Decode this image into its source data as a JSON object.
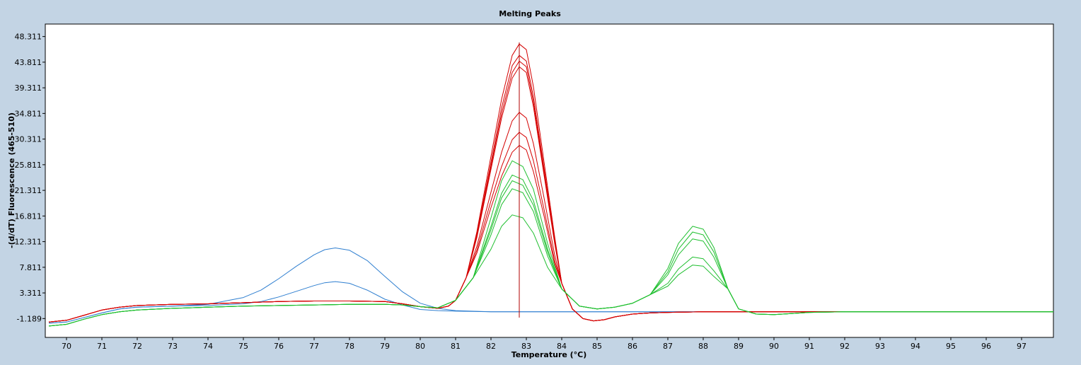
{
  "window": {
    "background": "#c3d4e4"
  },
  "chart_data": {
    "type": "line",
    "title": "Melting Peaks",
    "xlabel": "Temperature (°C)",
    "ylabel": "-(d/dT) Fluorescence (465-510)",
    "xlim": [
      69.4,
      97.9
    ],
    "ylim": [
      -4.5,
      50.5
    ],
    "xticks": [
      70,
      71,
      72,
      73,
      74,
      75,
      76,
      77,
      78,
      79,
      80,
      81,
      82,
      83,
      84,
      85,
      86,
      87,
      88,
      89,
      90,
      91,
      92,
      93,
      94,
      95,
      96,
      97
    ],
    "yticks": [
      -1.189,
      3.311,
      7.811,
      12.311,
      16.811,
      21.311,
      25.811,
      30.311,
      34.811,
      39.311,
      43.811,
      48.311
    ],
    "ytick_labels": [
      "-1.189",
      "3.311",
      "7.811",
      "12.311",
      "16.811",
      "21.311",
      "25.811",
      "30.311",
      "34.811",
      "39.311",
      "43.811",
      "48.311"
    ],
    "cursor": {
      "x": 82.8,
      "color": "#b00000"
    },
    "grid": false,
    "colors": {
      "blue": "#2f7fd0",
      "red": "#d40000",
      "green": "#1fbf2f"
    },
    "series": [
      {
        "color": "#2f7fd0",
        "x": [
          69.5,
          70,
          70.5,
          71,
          71.5,
          72,
          73,
          74,
          75,
          75.5,
          76,
          76.5,
          77,
          77.3,
          77.6,
          78,
          78.5,
          79,
          79.5,
          80,
          80.5,
          81,
          82,
          83,
          85,
          88,
          91.5
        ],
        "y": [
          -2,
          -1.8,
          -1,
          -0.2,
          0.5,
          0.8,
          1,
          1.3,
          2.5,
          3.8,
          5.8,
          8,
          10,
          10.9,
          11.2,
          10.8,
          9,
          6.2,
          3.5,
          1.5,
          0.6,
          0.2,
          0,
          0,
          0,
          0,
          0
        ]
      },
      {
        "color": "#2f7fd0",
        "x": [
          69.5,
          70,
          70.5,
          71,
          71.5,
          72,
          73,
          74,
          75,
          75.5,
          76,
          76.5,
          77,
          77.3,
          77.6,
          78,
          78.5,
          79,
          79.5,
          80,
          80.5,
          81,
          82,
          83,
          85,
          88,
          91.5
        ],
        "y": [
          -2,
          -1.8,
          -1,
          -0.2,
          0.5,
          0.8,
          1,
          1.1,
          1.4,
          1.8,
          2.6,
          3.6,
          4.6,
          5.1,
          5.3,
          5,
          3.8,
          2.2,
          1.2,
          0.4,
          0.2,
          0.1,
          0,
          0,
          0,
          0,
          0
        ]
      },
      {
        "color": "#d40000",
        "x": [
          69.5,
          70,
          70.5,
          71,
          71.5,
          72,
          73,
          74,
          75,
          76,
          77,
          78,
          79,
          79.5,
          80,
          80.5,
          80.8,
          81,
          81.3,
          81.6,
          82,
          82.3,
          82.6,
          82.8,
          83,
          83.2,
          83.5,
          83.8,
          84,
          84.3,
          84.6,
          84.9,
          85.2,
          85.5,
          86,
          86.5,
          87,
          88,
          89,
          90,
          91,
          93,
          95,
          97.9
        ],
        "y": [
          -1.8,
          -1.5,
          -0.6,
          0.3,
          0.8,
          1.1,
          1.3,
          1.4,
          1.6,
          1.8,
          1.9,
          1.9,
          1.8,
          1.4,
          0.9,
          0.6,
          1,
          2,
          6,
          13,
          25,
          34,
          41,
          43,
          42,
          36,
          24,
          12,
          5,
          0.5,
          -1.2,
          -1.6,
          -1.4,
          -0.9,
          -0.4,
          -0.2,
          -0.1,
          0,
          0,
          0,
          0,
          0,
          0,
          0
        ]
      },
      {
        "color": "#d40000",
        "x": [
          69.5,
          70,
          70.5,
          71,
          71.5,
          72,
          73,
          74,
          75,
          76,
          77,
          78,
          79,
          79.5,
          80,
          80.5,
          80.8,
          81,
          81.3,
          81.6,
          82,
          82.3,
          82.6,
          82.8,
          83,
          83.2,
          83.5,
          83.8,
          84,
          84.3,
          84.6,
          84.9,
          85.2,
          85.5,
          86,
          86.5,
          87,
          88,
          89,
          90,
          91,
          93,
          95,
          97.9
        ],
        "y": [
          -1.8,
          -1.5,
          -0.6,
          0.3,
          0.8,
          1.1,
          1.3,
          1.4,
          1.6,
          1.8,
          1.9,
          1.9,
          1.8,
          1.4,
          0.9,
          0.6,
          1,
          2,
          6,
          13.3,
          25.6,
          34.8,
          42,
          44,
          43,
          36.8,
          24.6,
          12.3,
          5,
          0.5,
          -1.2,
          -1.6,
          -1.4,
          -0.9,
          -0.4,
          -0.2,
          -0.1,
          0,
          0,
          0,
          0,
          0,
          0,
          0
        ]
      },
      {
        "color": "#d40000",
        "x": [
          69.5,
          70,
          70.5,
          71,
          71.5,
          72,
          73,
          74,
          75,
          76,
          77,
          78,
          79,
          79.5,
          80,
          80.5,
          80.8,
          81,
          81.3,
          81.6,
          82,
          82.3,
          82.6,
          82.8,
          83,
          83.2,
          83.5,
          83.8,
          84,
          84.3,
          84.6,
          84.9,
          85.2,
          85.5,
          86,
          86.5,
          87,
          88,
          89,
          90,
          91,
          93,
          95,
          97.9
        ],
        "y": [
          -1.8,
          -1.5,
          -0.6,
          0.3,
          0.8,
          1.1,
          1.3,
          1.4,
          1.6,
          1.8,
          1.9,
          1.9,
          1.8,
          1.4,
          0.9,
          0.6,
          1,
          2,
          6,
          14,
          27.3,
          37.3,
          45,
          47,
          46,
          39.5,
          26.3,
          13.2,
          5,
          0.5,
          -1.2,
          -1.6,
          -1.4,
          -0.9,
          -0.4,
          -0.2,
          -0.1,
          0,
          0,
          0,
          0,
          0,
          0,
          0
        ]
      },
      {
        "color": "#d40000",
        "x": [
          69.5,
          70,
          70.5,
          71,
          71.5,
          72,
          73,
          74,
          75,
          76,
          77,
          78,
          79,
          79.5,
          80,
          80.5,
          80.8,
          81,
          81.3,
          81.6,
          82,
          82.3,
          82.6,
          82.8,
          83,
          83.2,
          83.5,
          83.8,
          84,
          84.3,
          84.6,
          84.9,
          85.2,
          85.5,
          86,
          86.5,
          87,
          88,
          89,
          90,
          91,
          93,
          95,
          97.9
        ],
        "y": [
          -1.8,
          -1.5,
          -0.6,
          0.3,
          0.8,
          1.1,
          1.3,
          1.4,
          1.6,
          1.8,
          1.9,
          1.9,
          1.8,
          1.4,
          0.9,
          0.6,
          1,
          2,
          6,
          13.6,
          26.2,
          35.8,
          43.2,
          45,
          44,
          37.7,
          25.2,
          12.6,
          5,
          0.5,
          -1.2,
          -1.6,
          -1.4,
          -0.9,
          -0.4,
          -0.2,
          -0.1,
          0,
          0,
          0,
          0,
          0,
          0,
          0
        ]
      },
      {
        "color": "#d40000",
        "x": [
          69.5,
          70,
          70.5,
          71,
          71.5,
          72,
          73,
          74,
          75,
          76,
          77,
          78,
          79,
          79.5,
          80,
          80.5,
          80.8,
          81,
          81.3,
          81.6,
          82,
          82.3,
          82.6,
          82.8,
          83,
          83.2,
          83.5,
          83.8,
          84,
          84.3,
          84.6,
          84.9,
          85.2,
          85.5,
          86,
          86.5,
          87,
          88,
          89,
          90,
          91,
          93,
          95,
          97.9
        ],
        "y": [
          -1.8,
          -1.5,
          -0.6,
          0.3,
          0.8,
          1.1,
          1.3,
          1.4,
          1.6,
          1.8,
          1.9,
          1.9,
          1.8,
          1.4,
          0.9,
          0.6,
          1,
          2,
          6,
          11.5,
          21,
          28,
          33.5,
          35,
          34,
          29.5,
          20,
          10,
          5,
          0.5,
          -1.2,
          -1.6,
          -1.4,
          -0.9,
          -0.4,
          -0.2,
          -0.1,
          0,
          0,
          0,
          0,
          0,
          0,
          0
        ]
      },
      {
        "color": "#d40000",
        "x": [
          69.5,
          70,
          70.5,
          71,
          71.5,
          72,
          73,
          74,
          75,
          76,
          77,
          78,
          79,
          79.5,
          80,
          80.5,
          80.8,
          81,
          81.3,
          81.6,
          82,
          82.3,
          82.6,
          82.8,
          83,
          83.2,
          83.5,
          83.8,
          84,
          84.3,
          84.6,
          84.9,
          85.2,
          85.5,
          86,
          86.5,
          87,
          88,
          89,
          90,
          91,
          93,
          95,
          97.9
        ],
        "y": [
          -1.8,
          -1.5,
          -0.6,
          0.3,
          0.8,
          1.1,
          1.3,
          1.4,
          1.6,
          1.8,
          1.9,
          1.9,
          1.8,
          1.4,
          0.9,
          0.6,
          1,
          2,
          6,
          10.8,
          19.5,
          25.5,
          30.2,
          31.5,
          30.6,
          26.5,
          18,
          9,
          5,
          0.5,
          -1.2,
          -1.6,
          -1.4,
          -0.9,
          -0.4,
          -0.2,
          -0.1,
          0,
          0,
          0,
          0,
          0,
          0,
          0
        ]
      },
      {
        "color": "#d40000",
        "x": [
          69.5,
          70,
          70.5,
          71,
          71.5,
          72,
          73,
          74,
          75,
          76,
          77,
          78,
          79,
          79.5,
          80,
          80.5,
          80.8,
          81,
          81.3,
          81.6,
          82,
          82.3,
          82.6,
          82.8,
          83,
          83.2,
          83.5,
          83.8,
          84,
          84.3,
          84.6,
          84.9,
          85.2,
          85.5,
          86,
          86.5,
          87,
          88,
          89,
          90,
          91,
          93,
          95,
          97.9
        ],
        "y": [
          -1.8,
          -1.5,
          -0.6,
          0.3,
          0.8,
          1.1,
          1.3,
          1.4,
          1.6,
          1.8,
          1.9,
          1.9,
          1.8,
          1.4,
          0.9,
          0.6,
          1,
          2,
          6,
          10.3,
          18.3,
          23.8,
          28,
          29.2,
          28.4,
          24.6,
          16.8,
          8.4,
          5,
          0.5,
          -1.2,
          -1.6,
          -1.4,
          -0.9,
          -0.4,
          -0.2,
          -0.1,
          0,
          0,
          0,
          0,
          0,
          0,
          0
        ]
      },
      {
        "color": "#1fbf2f",
        "x": [
          69.5,
          70,
          70.5,
          71,
          71.5,
          72,
          73,
          74,
          75,
          76,
          77,
          78,
          79,
          79.5,
          80,
          80.5,
          81,
          81.5,
          82,
          82.3,
          82.6,
          82.9,
          83.2,
          83.6,
          84,
          84.5,
          85,
          85.5,
          86,
          86.5,
          87,
          87.3,
          87.7,
          88,
          88.3,
          88.7,
          89,
          89.5,
          90,
          90.5,
          91,
          92,
          95,
          97.9
        ],
        "y": [
          -2.5,
          -2.2,
          -1.3,
          -0.5,
          0,
          0.3,
          0.6,
          0.8,
          1,
          1.1,
          1.2,
          1.3,
          1.3,
          1.2,
          0.9,
          0.7,
          2,
          6,
          16.5,
          23,
          26.5,
          25.5,
          21.5,
          12,
          4,
          1,
          0.5,
          0.8,
          1.5,
          3,
          7,
          11,
          14,
          13.5,
          10.5,
          4,
          0.5,
          -0.4,
          -0.5,
          -0.3,
          -0.1,
          0,
          0,
          0
        ]
      },
      {
        "color": "#1fbf2f",
        "x": [
          69.5,
          70,
          70.5,
          71,
          71.5,
          72,
          73,
          74,
          75,
          76,
          77,
          78,
          79,
          79.5,
          80,
          80.5,
          81,
          81.5,
          82,
          82.3,
          82.6,
          82.9,
          83.2,
          83.6,
          84,
          84.5,
          85,
          85.5,
          86,
          86.5,
          87,
          87.3,
          87.7,
          88,
          88.3,
          88.7,
          89,
          89.5,
          90,
          90.5,
          91,
          92,
          95,
          97.9
        ],
        "y": [
          -2.5,
          -2.2,
          -1.3,
          -0.5,
          0,
          0.3,
          0.6,
          0.8,
          1,
          1.1,
          1.2,
          1.3,
          1.3,
          1.2,
          0.9,
          0.7,
          2,
          6,
          15,
          20.8,
          24,
          23.2,
          19.5,
          11,
          4,
          1,
          0.5,
          0.8,
          1.5,
          3,
          7.6,
          12,
          15,
          14.5,
          11.3,
          4,
          0.5,
          -0.4,
          -0.5,
          -0.3,
          -0.1,
          0,
          0,
          0
        ]
      },
      {
        "color": "#1fbf2f",
        "x": [
          69.5,
          70,
          70.5,
          71,
          71.5,
          72,
          73,
          74,
          75,
          76,
          77,
          78,
          79,
          79.5,
          80,
          80.5,
          81,
          81.5,
          82,
          82.3,
          82.6,
          82.9,
          83.2,
          83.6,
          84,
          84.5,
          85,
          85.5,
          86,
          86.5,
          87,
          87.3,
          87.7,
          88,
          88.3,
          88.7,
          89,
          89.5,
          90,
          90.5,
          91,
          92,
          95,
          97.9
        ],
        "y": [
          -2.5,
          -2.2,
          -1.3,
          -0.5,
          0,
          0.3,
          0.6,
          0.8,
          1,
          1.1,
          1.2,
          1.3,
          1.3,
          1.2,
          0.9,
          0.7,
          2,
          6,
          14.4,
          20,
          23,
          22.2,
          18.7,
          10.5,
          4,
          1,
          0.5,
          0.8,
          1.5,
          3,
          6.5,
          10,
          12.8,
          12.4,
          9.6,
          4,
          0.5,
          -0.4,
          -0.5,
          -0.3,
          -0.1,
          0,
          0,
          0
        ]
      },
      {
        "color": "#1fbf2f",
        "x": [
          69.5,
          70,
          70.5,
          71,
          71.5,
          72,
          73,
          74,
          75,
          76,
          77,
          78,
          79,
          79.5,
          80,
          80.5,
          81,
          81.5,
          82,
          82.3,
          82.6,
          82.9,
          83.2,
          83.6,
          84,
          84.5,
          85,
          85.5,
          86,
          86.5,
          87,
          87.3,
          87.7,
          88,
          88.3,
          88.7,
          89,
          89.5,
          90,
          90.5,
          91,
          92,
          95,
          97.9
        ],
        "y": [
          -2.5,
          -2.2,
          -1.3,
          -0.5,
          0,
          0.3,
          0.6,
          0.8,
          1,
          1.1,
          1.2,
          1.3,
          1.3,
          1.2,
          0.9,
          0.7,
          2,
          6,
          13.5,
          18.8,
          21.6,
          20.9,
          17.6,
          9.8,
          4,
          1,
          0.5,
          0.8,
          1.5,
          3,
          5,
          7.5,
          9.6,
          9.3,
          7.2,
          4,
          0.5,
          -0.4,
          -0.5,
          -0.3,
          -0.1,
          0,
          0,
          0
        ]
      },
      {
        "color": "#1fbf2f",
        "x": [
          69.5,
          70,
          70.5,
          71,
          71.5,
          72,
          73,
          74,
          75,
          76,
          77,
          78,
          79,
          79.5,
          80,
          80.5,
          81,
          81.5,
          82,
          82.3,
          82.6,
          82.9,
          83.2,
          83.6,
          84,
          84.5,
          85,
          85.5,
          86,
          86.5,
          87,
          87.3,
          87.7,
          88,
          88.3,
          88.7,
          89,
          89.5,
          90,
          90.5,
          91,
          92,
          95,
          97.9
        ],
        "y": [
          -2.5,
          -2.2,
          -1.3,
          -0.5,
          0,
          0.3,
          0.6,
          0.8,
          1,
          1.1,
          1.2,
          1.3,
          1.3,
          1.2,
          0.9,
          0.7,
          2,
          6,
          11,
          15,
          17,
          16.5,
          13.8,
          7.8,
          4,
          1,
          0.5,
          0.8,
          1.5,
          3,
          4.5,
          6.5,
          8.2,
          8,
          6.2,
          4,
          0.5,
          -0.4,
          -0.5,
          -0.3,
          -0.1,
          0,
          0,
          0
        ]
      }
    ]
  }
}
